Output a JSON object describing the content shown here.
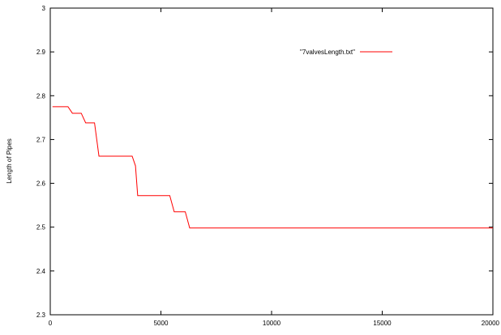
{
  "chart_data": {
    "type": "line",
    "title": "",
    "xlabel": "",
    "ylabel": "Length of Pipes",
    "xlim": [
      0,
      20000
    ],
    "ylim": [
      2.3,
      3
    ],
    "x_ticks": [
      0,
      5000,
      10000,
      15000,
      20000
    ],
    "x_tick_labels": [
      "0",
      "5000",
      "10000",
      "15000",
      "20000"
    ],
    "y_ticks": [
      2.3,
      2.4,
      2.5,
      2.6,
      2.7,
      2.8,
      2.9,
      3
    ],
    "y_tick_labels": [
      "2.3",
      "2.4",
      "2.5",
      "2.6",
      "2.7",
      "2.8",
      "2.9",
      "3"
    ],
    "grid": false,
    "legend_position": "top-right",
    "series": [
      {
        "name": "\"7valvesLength.txt\"",
        "color": "#ff0000",
        "x": [
          100,
          800,
          1000,
          1400,
          1600,
          2000,
          2200,
          3700,
          3850,
          3950,
          4100,
          5400,
          5600,
          6100,
          6300,
          20000
        ],
        "y": [
          2.775,
          2.775,
          2.76,
          2.76,
          2.738,
          2.738,
          2.662,
          2.662,
          2.64,
          2.572,
          2.572,
          2.572,
          2.535,
          2.535,
          2.498,
          2.498
        ]
      }
    ]
  }
}
